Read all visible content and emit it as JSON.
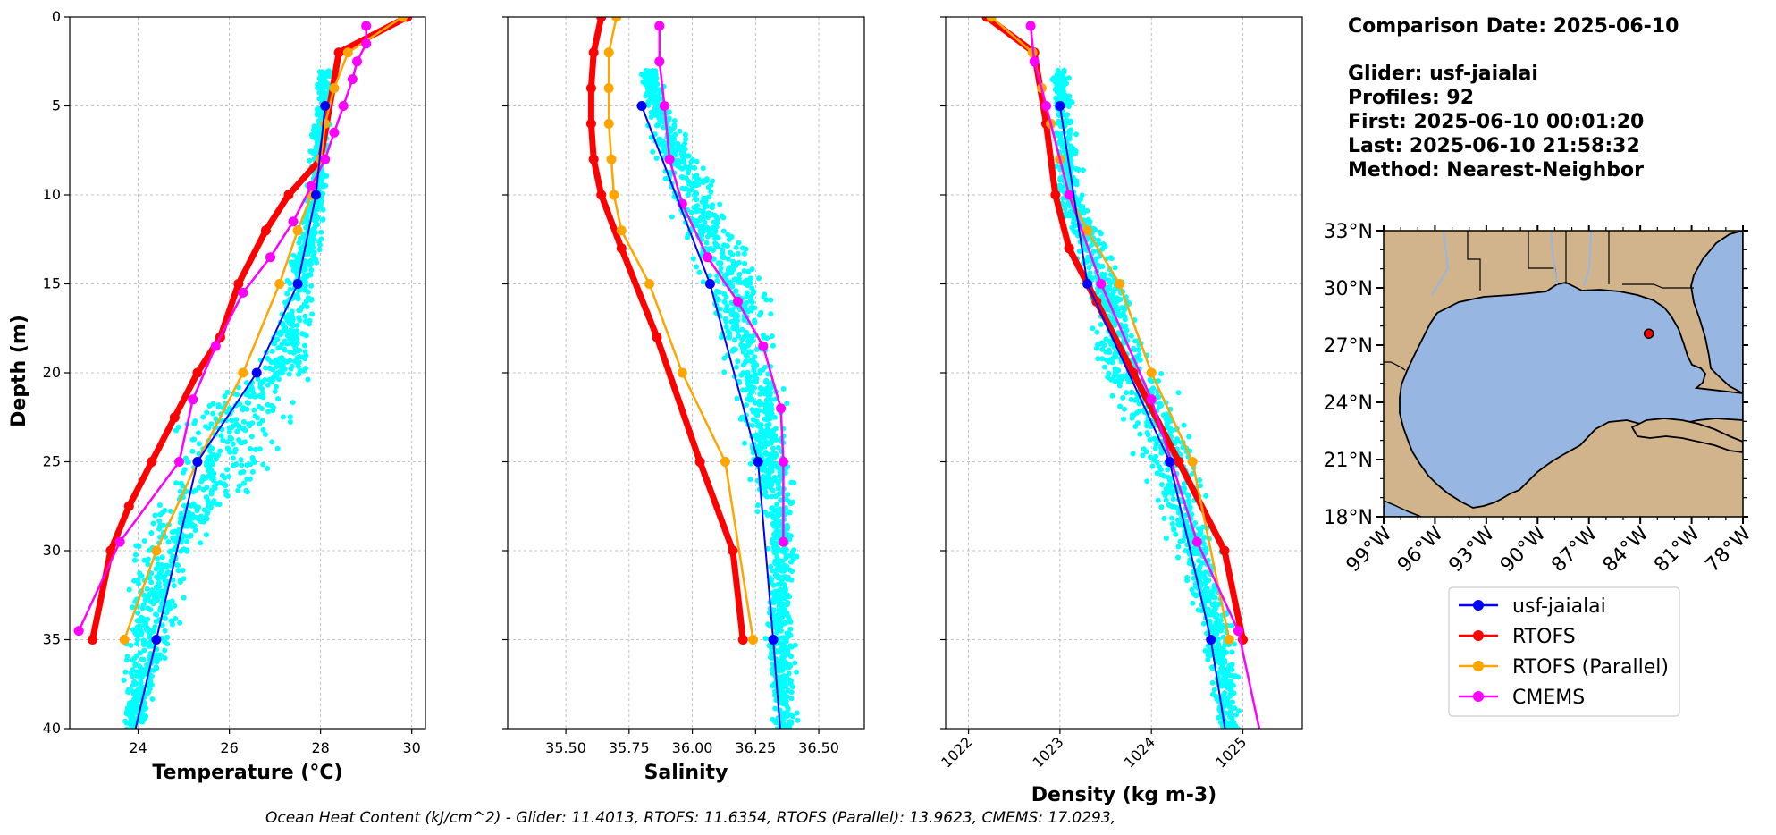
{
  "info": {
    "comparison_date": "Comparison Date: 2025-06-10",
    "glider": "Glider: usf-jaialai",
    "profiles": "Profiles: 92",
    "first": "First: 2025-06-10 00:01:20",
    "last": "Last: 2025-06-10 21:58:32",
    "method": "Method: Nearest-Neighbor"
  },
  "footer": "Ocean Heat Content (kJ/cm^2) - Glider: 11.4013,  RTOFS: 11.6354,  RTOFS (Parallel): 13.9623,  CMEMS: 17.0293,",
  "colors": {
    "glider": "#0000ff",
    "rtofs": "#ff0000",
    "rtofs_parallel": "#ffa500",
    "cmems": "#ff00ff",
    "scatter": "#00ffff",
    "land": "#d2b48c",
    "ocean": "#97b6e1"
  },
  "legend": [
    "usf-jaialai",
    "RTOFS",
    "RTOFS (Parallel)",
    "CMEMS"
  ],
  "map": {
    "lat_labels": [
      "33°N",
      "30°N",
      "27°N",
      "24°N",
      "21°N",
      "18°N"
    ],
    "lon_labels": [
      "99°W",
      "96°W",
      "93°W",
      "90°W",
      "87°W",
      "84°W",
      "81°W",
      "78°W"
    ],
    "extent": {
      "lon": [
        -99,
        -78
      ],
      "lat": [
        18,
        33
      ]
    },
    "glider_marker": {
      "lon": -83.5,
      "lat": 27.6
    }
  },
  "chart_data": [
    {
      "type": "line",
      "xlabel": "Temperature (°C)",
      "ylabel": "Depth (m)",
      "xlim": [
        22.5,
        30.3
      ],
      "ylim": [
        40,
        0
      ],
      "xticks": [
        24,
        26,
        28,
        30
      ],
      "yticks": [
        0,
        5,
        10,
        15,
        20,
        25,
        30,
        35,
        40
      ],
      "grid": true,
      "scatter_band": [
        [
          3,
          27.9,
          28.3
        ],
        [
          10,
          27.6,
          28.2
        ],
        [
          15,
          27.1,
          28.0
        ],
        [
          20,
          26.4,
          27.9
        ],
        [
          22,
          24.8,
          27.6
        ],
        [
          25,
          24.4,
          27.3
        ],
        [
          28,
          24.0,
          26.3
        ],
        [
          30,
          23.7,
          25.4
        ],
        [
          35,
          23.6,
          25.0
        ],
        [
          40,
          23.5,
          24.2
        ]
      ],
      "series": [
        {
          "name": "usf-jaialai",
          "x": [
            28.1,
            27.9,
            27.5,
            26.6,
            25.3,
            24.4,
            23.9
          ],
          "y": [
            5,
            10,
            15,
            20,
            25,
            35,
            40.5
          ]
        },
        {
          "name": "RTOFS",
          "x": [
            29.9,
            28.4,
            28.0,
            27.3,
            26.8,
            26.2,
            25.8,
            25.3,
            24.8,
            24.3,
            23.8,
            23.4,
            23.0
          ],
          "y": [
            0,
            2,
            8,
            10,
            12,
            15,
            18,
            20,
            22.5,
            25,
            27.5,
            30,
            35
          ]
        },
        {
          "name": "RTOFS (Parallel)",
          "x": [
            29.8,
            28.6,
            28.3,
            28.1,
            28.0,
            27.8,
            27.5,
            27.1,
            26.3,
            25.3,
            24.4,
            23.7
          ],
          "y": [
            0,
            2,
            4,
            6,
            8,
            10,
            12,
            15,
            20,
            25,
            30,
            35
          ]
        },
        {
          "name": "CMEMS",
          "x": [
            29.0,
            29.0,
            28.8,
            28.7,
            28.5,
            28.3,
            28.1,
            27.8,
            27.4,
            26.9,
            26.3,
            25.7,
            25.2,
            24.9,
            23.6,
            22.7
          ],
          "y": [
            0.5,
            1.5,
            2.5,
            3.5,
            5,
            6.5,
            8,
            9.5,
            11.5,
            13.5,
            15.5,
            18.5,
            21.5,
            25,
            29.5,
            34.5
          ]
        }
      ]
    },
    {
      "type": "line",
      "xlabel": "Salinity",
      "xlim": [
        35.27,
        36.68
      ],
      "ylim": [
        40,
        0
      ],
      "xticks": [
        "35.50",
        "35.75",
        "36.00",
        "36.25",
        "36.50"
      ],
      "xtick_values": [
        35.5,
        35.75,
        36.0,
        36.25,
        36.5
      ],
      "grid": true,
      "scatter_band": [
        [
          3,
          35.78,
          35.88
        ],
        [
          5,
          35.79,
          35.92
        ],
        [
          10,
          35.85,
          36.15
        ],
        [
          15,
          36.0,
          36.32
        ],
        [
          20,
          36.1,
          36.38
        ],
        [
          25,
          36.2,
          36.42
        ],
        [
          30,
          36.28,
          36.43
        ],
        [
          35,
          36.28,
          36.42
        ],
        [
          40,
          36.3,
          36.43
        ]
      ],
      "series": [
        {
          "name": "usf-jaialai",
          "x": [
            35.8,
            36.07,
            36.26,
            36.32,
            36.35
          ],
          "y": [
            5,
            15,
            25,
            35,
            40.5
          ]
        },
        {
          "name": "RTOFS",
          "x": [
            35.64,
            35.61,
            35.6,
            35.6,
            35.61,
            35.64,
            35.72,
            35.86,
            36.03,
            36.16,
            36.2
          ],
          "y": [
            0,
            2,
            4,
            6,
            8,
            10,
            13,
            18,
            25,
            30,
            35
          ]
        },
        {
          "name": "RTOFS (Parallel)",
          "x": [
            35.7,
            35.67,
            35.67,
            35.67,
            35.68,
            35.69,
            35.72,
            35.83,
            35.96,
            36.13,
            36.24
          ],
          "y": [
            0,
            2,
            4,
            6,
            8,
            10,
            12,
            15,
            20,
            25,
            35
          ]
        },
        {
          "name": "CMEMS",
          "x": [
            35.87,
            35.87,
            35.89,
            35.91,
            35.96,
            36.06,
            36.18,
            36.28,
            36.35,
            36.36,
            36.36
          ],
          "y": [
            0.5,
            2.5,
            5,
            8,
            10.5,
            13.5,
            16,
            18.5,
            22,
            25,
            29.5
          ]
        }
      ]
    },
    {
      "type": "line",
      "xlabel": "Density (kg m-3)",
      "xlim": [
        1021.75,
        1025.65
      ],
      "ylim": [
        40,
        0
      ],
      "xticks": [
        "1022",
        "1023",
        "1024",
        "1025"
      ],
      "xtick_values": [
        1022,
        1023,
        1024,
        1025
      ],
      "grid": true,
      "scatter_band": [
        [
          3,
          1022.9,
          1023.1
        ],
        [
          10,
          1022.9,
          1023.3
        ],
        [
          15,
          1023.2,
          1023.8
        ],
        [
          20,
          1023.3,
          1024.2
        ],
        [
          22,
          1023.6,
          1024.4
        ],
        [
          25,
          1023.8,
          1024.6
        ],
        [
          30,
          1024.2,
          1024.8
        ],
        [
          35,
          1024.5,
          1024.95
        ],
        [
          40,
          1024.7,
          1025.0
        ]
      ],
      "series": [
        {
          "name": "usf-jaialai",
          "x": [
            1023.0,
            1023.3,
            1024.2,
            1024.65,
            1024.82
          ],
          "y": [
            5,
            15,
            25,
            35,
            40.5
          ]
        },
        {
          "name": "RTOFS",
          "x": [
            1022.2,
            1022.72,
            1022.85,
            1022.95,
            1023.1,
            1023.4,
            1023.8,
            1024.3,
            1024.8,
            1025.0
          ],
          "y": [
            0,
            2,
            6,
            10,
            13,
            16,
            20,
            25,
            30,
            35
          ]
        },
        {
          "name": "RTOFS (Parallel)",
          "x": [
            1022.25,
            1022.7,
            1022.8,
            1022.9,
            1023.0,
            1023.1,
            1023.3,
            1023.65,
            1024.0,
            1024.45,
            1024.85
          ],
          "y": [
            0,
            2,
            4,
            6,
            8,
            10,
            12,
            15,
            20,
            25,
            35
          ]
        },
        {
          "name": "CMEMS",
          "x": [
            1022.68,
            1022.72,
            1022.85,
            1023.1,
            1023.45,
            1024.0,
            1024.5,
            1024.95,
            1025.2
          ],
          "y": [
            0.5,
            2.5,
            5,
            10,
            15,
            21.5,
            29.5,
            34.5,
            40.5
          ]
        }
      ]
    }
  ]
}
